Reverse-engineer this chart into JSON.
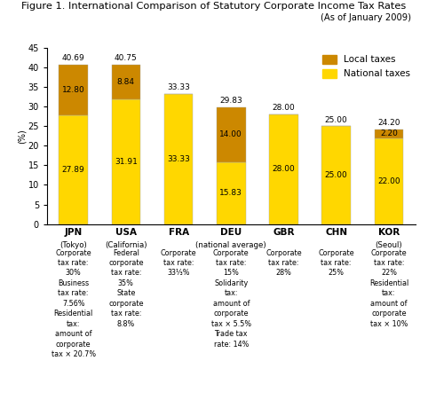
{
  "title": "Figure 1. International Comparison of Statutory Corporate Income Tax Rates",
  "subtitle": "(As of January 2009)",
  "ylabel": "(%)",
  "categories": [
    "JPN",
    "USA",
    "FRA",
    "DEU",
    "GBR",
    "CHN",
    "KOR"
  ],
  "subtitles": [
    "(Tokyo)",
    "(California)",
    "",
    "(national average)",
    "",
    "",
    "(Seoul)"
  ],
  "national_values": [
    27.89,
    31.91,
    33.33,
    15.83,
    28.0,
    25.0,
    22.0
  ],
  "local_values": [
    12.8,
    8.84,
    0.0,
    14.0,
    0.0,
    0.0,
    2.2
  ],
  "totals": [
    40.69,
    40.75,
    33.33,
    29.83,
    28.0,
    25.0,
    24.2
  ],
  "national_color": "#FFD700",
  "local_color": "#CC8800",
  "bar_width": 0.55,
  "ylim": [
    0,
    45
  ],
  "yticks": [
    0,
    5,
    10,
    15,
    20,
    25,
    30,
    35,
    40,
    45
  ],
  "annotation_texts": [
    "Corporate\ntax rate:\n30%\nBusiness\ntax rate:\n7.56%\nResidential\ntax:\namount of\ncorporate\ntax × 20.7%",
    "Federal\ncorporate\ntax rate:\n35%\nState\ncorporate\ntax rate:\n8.8%",
    "Corporate\ntax rate:\n33⅓%",
    "Corporate\ntax rate:\n15%\nSolidarity\ntax:\namount of\ncorporate\ntax × 5.5%\nTrade tax\nrate: 14%",
    "Corporate\ntax rate:\n28%",
    "Corporate\ntax rate:\n25%",
    "Corporate\ntax rate:\n22%\nResidential\ntax:\namount of\ncorporate\ntax × 10%"
  ],
  "legend_local": "Local taxes",
  "legend_national": "National taxes"
}
